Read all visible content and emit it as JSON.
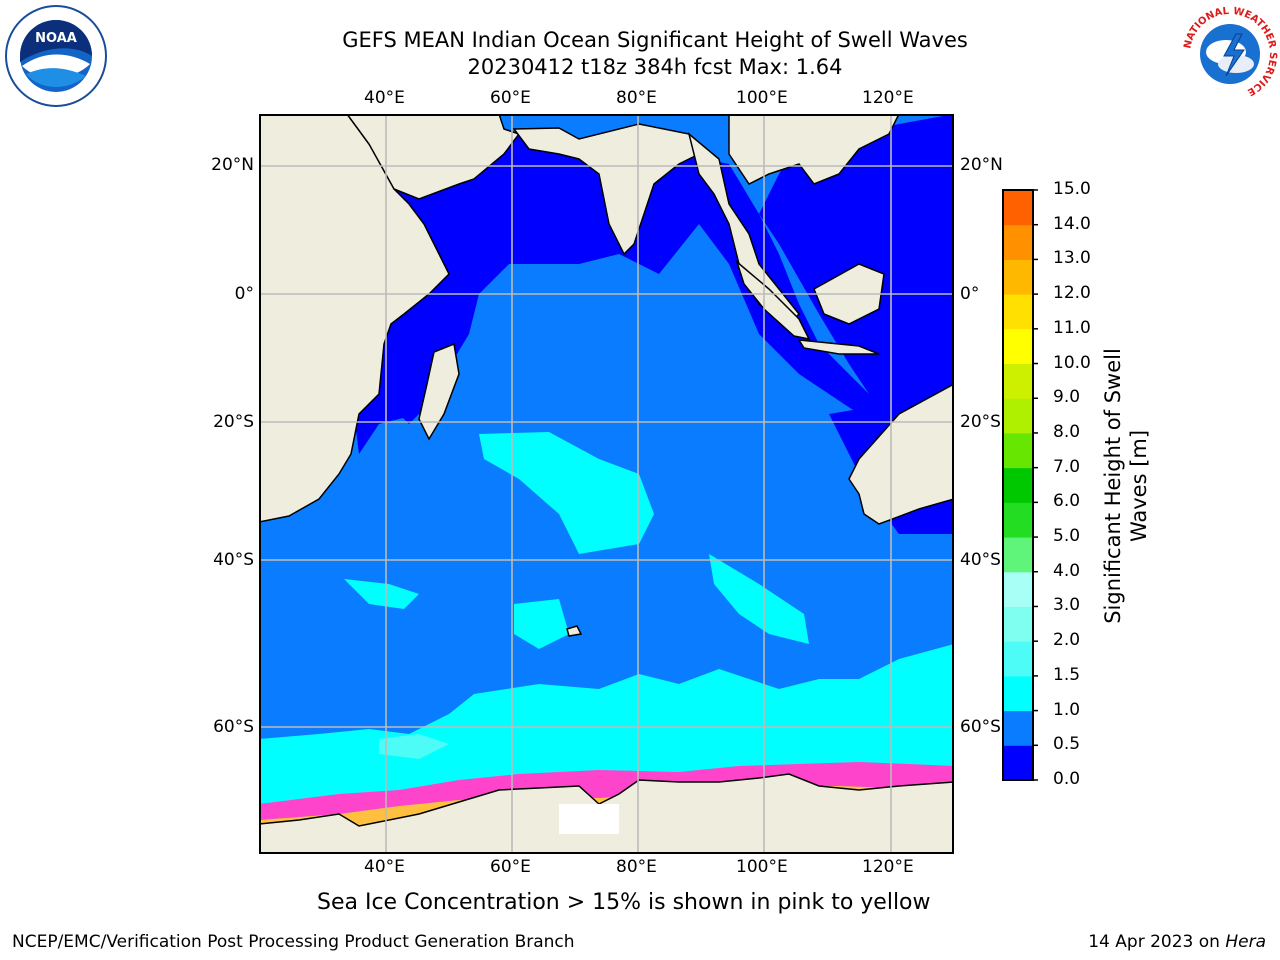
{
  "header": {
    "title_line1": "GEFS MEAN Indian Ocean Significant Height of Swell Waves",
    "title_line2": "20230412 t18z 384h fcst   Max: 1.64"
  },
  "logos": {
    "left": {
      "icon": "noaa-logo",
      "text": "NOAA"
    },
    "right": {
      "icon": "nws-logo",
      "ring_text": "NATIONAL WEATHER SERVICE"
    }
  },
  "map": {
    "lon_labels": [
      "40°E",
      "60°E",
      "80°E",
      "100°E",
      "120°E"
    ],
    "lat_labels": [
      "20°N",
      "0°",
      "20°S",
      "40°S",
      "60°S"
    ],
    "lon_range": [
      20,
      130
    ],
    "lat_range": [
      -72,
      28
    ],
    "colors": {
      "land": "#efedde",
      "sea_ice": "#ffffff",
      "ocean_0_0_5": "#0000ff",
      "ocean_0_5_1": "#0a7cff",
      "ocean_1_1_5": "#00ffff",
      "ocean_1_5_2": "#4dfcf6",
      "ice_edge": [
        "#ff44cc",
        "#ffb0e0",
        "#ffc040"
      ],
      "grid": "#bbbbbb"
    }
  },
  "colorbar": {
    "ticks": [
      "15.0",
      "14.0",
      "13.0",
      "12.0",
      "11.0",
      "10.0",
      "9.0",
      "8.0",
      "7.0",
      "6.0",
      "5.0",
      "4.0",
      "3.0",
      "2.0",
      "1.5",
      "1.0",
      "0.5",
      "0.0"
    ],
    "colors_bottom_to_top": [
      "#0000ff",
      "#0a7cff",
      "#00ffff",
      "#4dfcf6",
      "#7ffff0",
      "#a8fff5",
      "#5ef57a",
      "#22dd22",
      "#00c800",
      "#66e600",
      "#aef000",
      "#ccf000",
      "#ffff00",
      "#ffe000",
      "#ffb800",
      "#ff9000",
      "#ff6000",
      "#ff3000",
      "#ff0000"
    ],
    "label": "Significant Height of Swell Waves [m]",
    "label_line1": "Significant Height of Swell",
    "label_line2": "Waves [m]"
  },
  "subtitle": "Sea Ice Concentration > 15% is shown in pink to yellow",
  "footer": {
    "left": "NCEP/EMC/Verification Post Processing Product Generation Branch",
    "right_prefix": "14 Apr 2023 on ",
    "right_host": "Hera"
  }
}
